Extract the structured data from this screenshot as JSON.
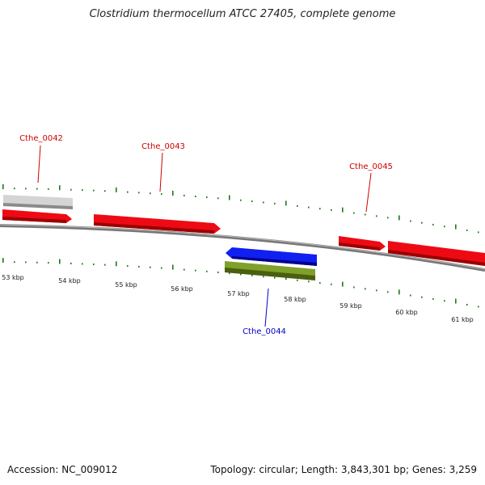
{
  "title": "Clostridium thermocellum ATCC 27405, complete genome",
  "footer": {
    "accession": "Accession: NC_009012",
    "stats": "Topology: circular; Length: 3,843,301 bp; Genes: 3,259"
  },
  "colors": {
    "forward_gene": "#e8000d",
    "reverse_gene": "#0a14e0",
    "rna_gray": "#c8c8c8",
    "rna_green": "#6f8f1f",
    "backbone": "#888888",
    "tick": "#1a7a1a",
    "label_forward": "#cc0000",
    "label_reverse": "#0000cc"
  },
  "scale": {
    "unit": "kbp",
    "ticks": [
      "53 kbp",
      "54 kbp",
      "55 kbp",
      "56 kbp",
      "57 kbp",
      "58 kbp",
      "59 kbp",
      "60 kbp",
      "61 kbp"
    ]
  },
  "gene_labels": [
    {
      "text": "Cthe_0042",
      "strand": "forward"
    },
    {
      "text": "Cthe_0043",
      "strand": "forward"
    },
    {
      "text": "Cthe_0045",
      "strand": "forward"
    },
    {
      "text": "Cthe_0044",
      "strand": "reverse"
    }
  ]
}
